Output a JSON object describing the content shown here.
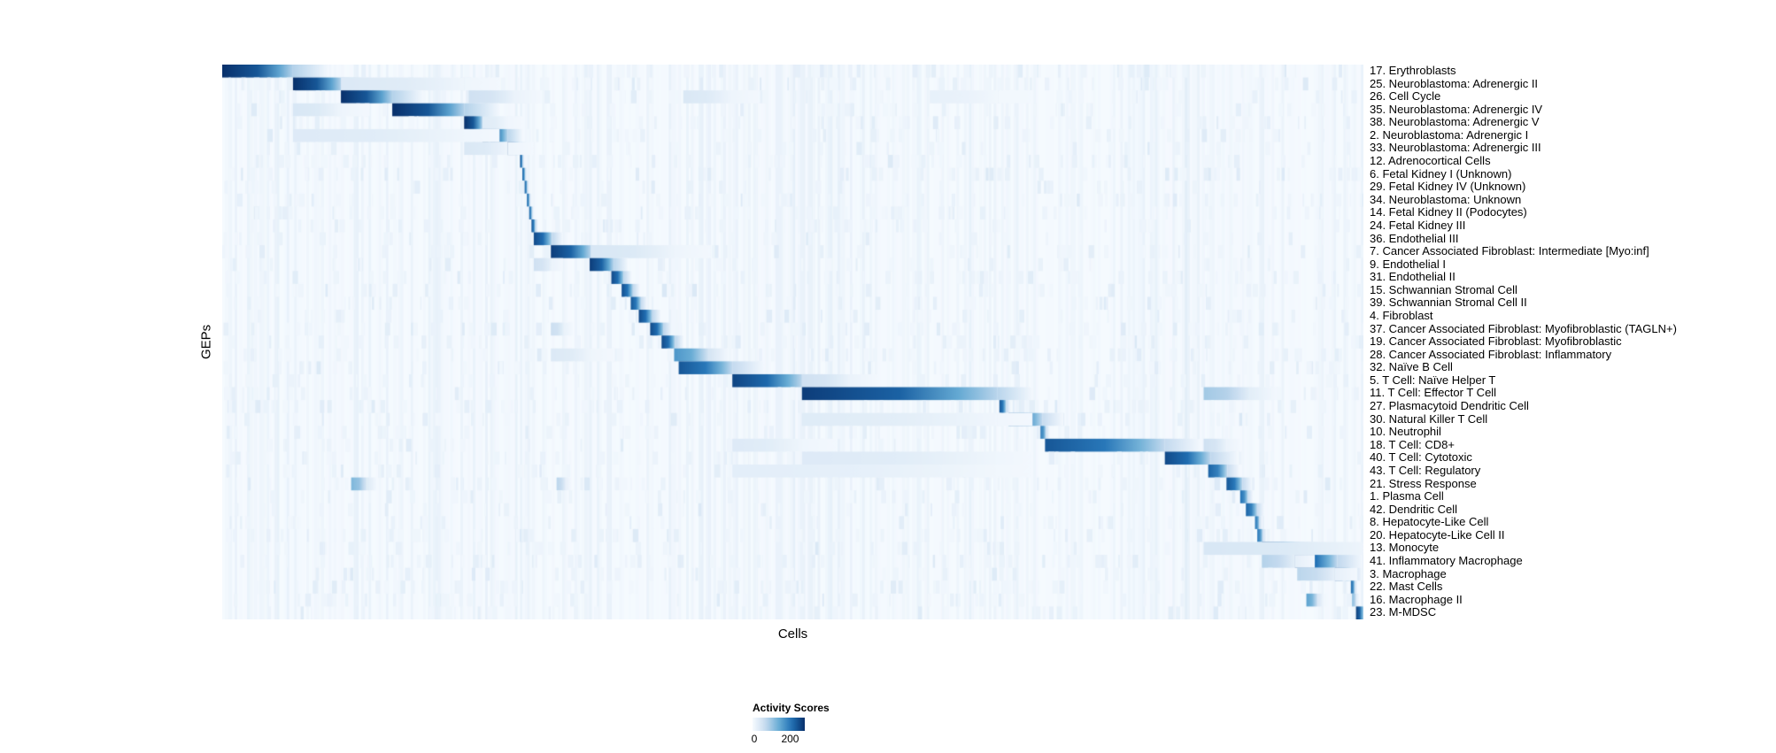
{
  "figure": {
    "background": "#ffffff"
  },
  "chart_data": {
    "type": "heatmap",
    "title": "",
    "xlabel": "Cells",
    "ylabel": "GEPs",
    "grid": false,
    "legend_position": "bottom-center",
    "value_range": [
      0,
      200
    ],
    "colorbar": {
      "title": "Activity Scores",
      "tick_min": "0",
      "tick_max": "200"
    },
    "colormap": {
      "name": "Blues",
      "stops": [
        "#f7fbff",
        "#c6dbef",
        "#6baed6",
        "#2171b5",
        "#08306b"
      ]
    },
    "rows": [
      {
        "label": "17. Erythroblasts",
        "blocks": [
          [
            0.0,
            0.062,
            1.0
          ]
        ]
      },
      {
        "label": "25. Neuroblastoma: Adrenergic II",
        "blocks": [
          [
            0.062,
            0.104,
            1.0
          ],
          [
            0.104,
            0.212,
            0.14
          ]
        ]
      },
      {
        "label": "26. Cell Cycle",
        "blocks": [
          [
            0.104,
            0.149,
            1.0
          ],
          [
            0.216,
            0.256,
            0.2
          ],
          [
            0.404,
            0.446,
            0.15
          ],
          [
            0.62,
            0.68,
            0.08
          ]
        ]
      },
      {
        "label": "35. Neuroblastoma: Adrenergic IV",
        "blocks": [
          [
            0.149,
            0.212,
            1.0
          ],
          [
            0.062,
            0.104,
            0.16
          ]
        ]
      },
      {
        "label": "38. Neuroblastoma: Adrenergic V",
        "blocks": [
          [
            0.212,
            0.228,
            1.0
          ],
          [
            0.228,
            0.25,
            0.12
          ]
        ]
      },
      {
        "label": "2. Neuroblastoma: Adrenergic I",
        "blocks": [
          [
            0.228,
            0.25,
            0.95
          ],
          [
            0.062,
            0.212,
            0.13
          ]
        ]
      },
      {
        "label": "33. Neuroblastoma: Adrenergic III",
        "blocks": [
          [
            0.25,
            0.261,
            0.92
          ],
          [
            0.212,
            0.25,
            0.15
          ]
        ]
      },
      {
        "label": "12. Adrenocortical Cells",
        "blocks": [
          [
            0.261,
            0.2635,
            0.85
          ]
        ]
      },
      {
        "label": "6. Fetal Kidney I (Unknown)",
        "blocks": [
          [
            0.263,
            0.2655,
            0.8
          ]
        ]
      },
      {
        "label": "29. Fetal Kidney IV (Unknown)",
        "blocks": [
          [
            0.265,
            0.2675,
            0.8
          ]
        ]
      },
      {
        "label": "34. Neuroblastoma: Unknown",
        "blocks": [
          [
            0.267,
            0.2695,
            0.78
          ]
        ]
      },
      {
        "label": "14. Fetal Kidney II (Podocytes)",
        "blocks": [
          [
            0.269,
            0.2715,
            0.8
          ]
        ]
      },
      {
        "label": "24. Fetal Kidney III",
        "blocks": [
          [
            0.271,
            0.2745,
            0.85
          ]
        ]
      },
      {
        "label": "36. Endothelial III",
        "blocks": [
          [
            0.273,
            0.289,
            0.9
          ]
        ]
      },
      {
        "label": "7. Cancer Associated Fibroblast: Intermediate [Myo:inf]",
        "blocks": [
          [
            0.288,
            0.323,
            0.95
          ],
          [
            0.323,
            0.397,
            0.16
          ]
        ]
      },
      {
        "label": "9. Endothelial I",
        "blocks": [
          [
            0.322,
            0.343,
            0.95
          ],
          [
            0.273,
            0.289,
            0.2
          ]
        ]
      },
      {
        "label": "31. Endothelial II",
        "blocks": [
          [
            0.341,
            0.352,
            0.9
          ]
        ]
      },
      {
        "label": "15. Schwannian Stromal Cell",
        "blocks": [
          [
            0.35,
            0.36,
            0.88
          ]
        ]
      },
      {
        "label": "39. Schwannian Stromal Cell II",
        "blocks": [
          [
            0.358,
            0.367,
            0.85
          ]
        ]
      },
      {
        "label": "4. Fibroblast",
        "blocks": [
          [
            0.365,
            0.377,
            0.9
          ]
        ]
      },
      {
        "label": "37. Cancer Associated Fibroblast: Myofibroblastic (TAGLN+)",
        "blocks": [
          [
            0.375,
            0.387,
            0.9
          ],
          [
            0.288,
            0.3,
            0.22
          ]
        ]
      },
      {
        "label": "19. Cancer Associated Fibroblast: Myofibroblastic",
        "blocks": [
          [
            0.385,
            0.397,
            0.9
          ]
        ]
      },
      {
        "label": "28. Cancer Associated Fibroblast: Inflammatory",
        "blocks": [
          [
            0.396,
            0.426,
            0.6
          ],
          [
            0.288,
            0.323,
            0.14
          ]
        ]
      },
      {
        "label": "32. Naïve B Cell",
        "blocks": [
          [
            0.4,
            0.447,
            0.85
          ]
        ]
      },
      {
        "label": "5. T Cell: Naïve Helper T",
        "blocks": [
          [
            0.447,
            0.508,
            0.92
          ],
          [
            0.508,
            0.55,
            0.2
          ]
        ]
      },
      {
        "label": "11. T Cell: Effector T Cell",
        "blocks": [
          [
            0.508,
            0.679,
            0.95
          ],
          [
            0.86,
            0.9,
            0.35
          ]
        ]
      },
      {
        "label": "27. Plasmacytoid Dendritic Cell",
        "blocks": [
          [
            0.681,
            0.687,
            0.85
          ]
        ]
      },
      {
        "label": "30. Natural Killer T Cell",
        "blocks": [
          [
            0.689,
            0.719,
            0.8
          ],
          [
            0.508,
            0.679,
            0.12
          ]
        ]
      },
      {
        "label": "10. Neutrophil",
        "blocks": [
          [
            0.717,
            0.722,
            0.7
          ]
        ]
      },
      {
        "label": "18. T Cell: CD8+",
        "blocks": [
          [
            0.721,
            0.826,
            0.85
          ],
          [
            0.447,
            0.508,
            0.13
          ],
          [
            0.86,
            0.88,
            0.2
          ]
        ]
      },
      {
        "label": "40. T Cell: Cytotoxic",
        "blocks": [
          [
            0.826,
            0.866,
            0.9
          ],
          [
            0.508,
            0.679,
            0.13
          ]
        ]
      },
      {
        "label": "43. T Cell: Regulatory",
        "blocks": [
          [
            0.864,
            0.881,
            0.8
          ],
          [
            0.447,
            0.679,
            0.1
          ]
        ]
      },
      {
        "label": "21. Stress Response",
        "blocks": [
          [
            0.88,
            0.894,
            0.85
          ],
          [
            0.113,
            0.127,
            0.45
          ],
          [
            0.293,
            0.301,
            0.28
          ]
        ]
      },
      {
        "label": "1. Plasma Cell",
        "blocks": [
          [
            0.892,
            0.899,
            0.75
          ]
        ]
      },
      {
        "label": "42. Dendritic Cell",
        "blocks": [
          [
            0.897,
            0.907,
            0.8
          ]
        ]
      },
      {
        "label": "8. Hepatocyte-Like Cell",
        "blocks": [
          [
            0.905,
            0.909,
            0.72
          ]
        ]
      },
      {
        "label": "20. Hepatocyte-Like Cell II",
        "blocks": [
          [
            0.907,
            0.912,
            0.72
          ]
        ]
      },
      {
        "label": "13. Monocyte",
        "blocks": [
          [
            0.911,
            0.942,
            0.9
          ],
          [
            0.86,
            1.0,
            0.16
          ]
        ]
      },
      {
        "label": "41. Inflammatory Macrophage",
        "blocks": [
          [
            0.94,
            0.977,
            0.88
          ],
          [
            0.911,
            0.94,
            0.3
          ]
        ]
      },
      {
        "label": "3. Macrophage",
        "blocks": [
          [
            0.975,
            0.99,
            0.88
          ],
          [
            0.942,
            0.975,
            0.28
          ]
        ]
      },
      {
        "label": "22. Mast Cells",
        "blocks": [
          [
            0.989,
            0.9925,
            0.78
          ]
        ]
      },
      {
        "label": "16. Macrophage II",
        "blocks": [
          [
            0.95,
            0.96,
            0.55
          ],
          [
            0.99,
            0.994,
            0.4
          ]
        ]
      },
      {
        "label": "23. M-MDSC",
        "blocks": [
          [
            0.9935,
            1.0,
            0.95
          ]
        ]
      }
    ]
  }
}
